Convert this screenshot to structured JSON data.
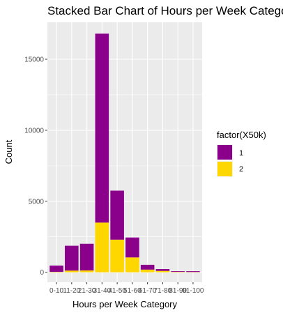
{
  "chart_data": {
    "type": "bar",
    "stacked": true,
    "title": "Stacked Bar Chart of Hours per Week Category",
    "xlabel": "Hours per Week Category",
    "ylabel": "Count",
    "categories": [
      "0-10",
      "11-20",
      "21-30",
      "31-40",
      "41-50",
      "51-60",
      "61-70",
      "71-80",
      "81-90",
      "91-100"
    ],
    "series": [
      {
        "name": "2",
        "color": "#FFD700",
        "values": [
          30,
          120,
          130,
          3500,
          2300,
          1050,
          190,
          100,
          30,
          20
        ]
      },
      {
        "name": "1",
        "color": "#8B008B",
        "values": [
          440,
          1750,
          1880,
          13300,
          3450,
          1400,
          340,
          130,
          50,
          60
        ]
      }
    ],
    "ylim": [
      -700,
      17600
    ],
    "yticks": [
      0,
      5000,
      10000,
      15000
    ],
    "ytick_labels": [
      "0",
      "5000",
      "10000",
      "15000"
    ],
    "grid": true,
    "legend": {
      "title": "factor(X50k)",
      "position": "right",
      "items": [
        {
          "label": "1",
          "color": "#8B008B"
        },
        {
          "label": "2",
          "color": "#FFD700"
        }
      ]
    }
  }
}
